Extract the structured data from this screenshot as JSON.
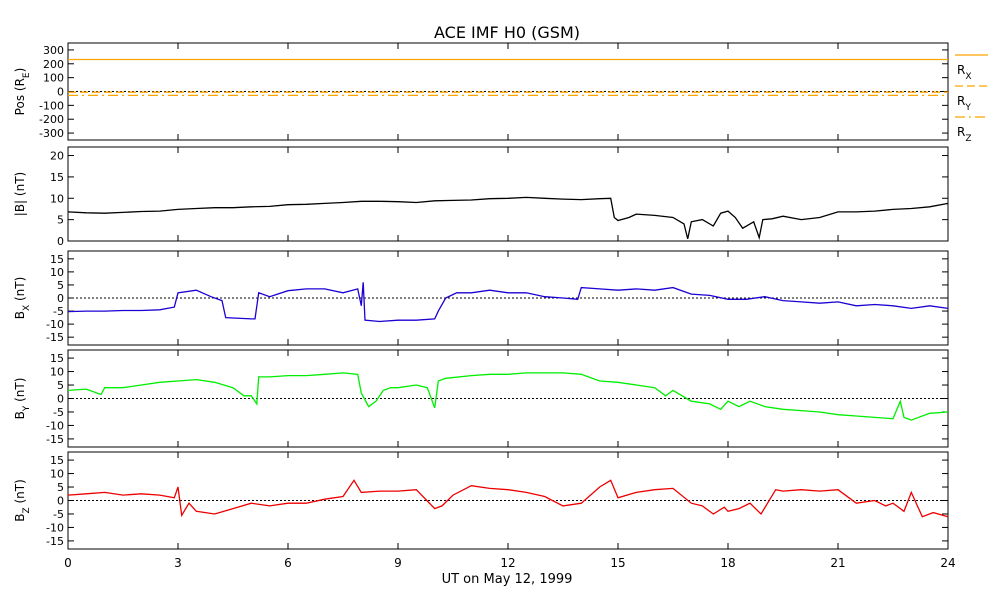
{
  "title": "ACE IMF H0 (GSM)",
  "xlabel": "UT on May 12, 1999",
  "x_ticks": [
    "0",
    "3",
    "6",
    "9",
    "12",
    "15",
    "18",
    "21",
    "24"
  ],
  "chart_data": [
    {
      "type": "line",
      "panel": "pos",
      "ylabel": "Pos (R",
      "ylabel_sub": "E",
      "ylabel_tail": ")",
      "ylim": [
        -350,
        350
      ],
      "y_ticks": [
        300,
        200,
        100,
        0,
        -100,
        -200,
        -300
      ],
      "zero_line": true,
      "series": [
        {
          "name": "R",
          "sub": "X",
          "color": "#ffa500",
          "style": "solid",
          "x": [
            0,
            24
          ],
          "y": [
            231,
            231
          ]
        },
        {
          "name": "R",
          "sub": "Y",
          "color": "#ffa500",
          "style": "dash",
          "x": [
            0,
            24
          ],
          "y": [
            -5,
            -5
          ]
        },
        {
          "name": "R",
          "sub": "Z",
          "color": "#ffa500",
          "style": "dashdot",
          "x": [
            0,
            24
          ],
          "y": [
            -28,
            -28
          ]
        }
      ]
    },
    {
      "type": "line",
      "panel": "bmag",
      "ylabel": "|B| (nT)",
      "ylim": [
        0,
        22
      ],
      "y_ticks": [
        20,
        15,
        10,
        5,
        0
      ],
      "zero_line": false,
      "series": [
        {
          "color": "#000000",
          "x": [
            0,
            0.5,
            1,
            1.5,
            2,
            2.5,
            3,
            3.5,
            4,
            4.5,
            5,
            5.5,
            6,
            6.5,
            7,
            7.5,
            8,
            8.5,
            9,
            9.5,
            10,
            10.5,
            11,
            11.5,
            12,
            12.5,
            13,
            13.5,
            14,
            14.5,
            14.8,
            14.9,
            15,
            15.3,
            15.5,
            16,
            16.5,
            16.8,
            16.9,
            17,
            17.3,
            17.6,
            17.8,
            18,
            18.2,
            18.4,
            18.7,
            18.85,
            18.95,
            19.2,
            19.5,
            20,
            20.5,
            21,
            21.5,
            22,
            22.5,
            23,
            23.5,
            24
          ],
          "y": [
            6.8,
            6.6,
            6.5,
            6.7,
            6.9,
            7.0,
            7.4,
            7.6,
            7.8,
            7.8,
            8.0,
            8.1,
            8.5,
            8.6,
            8.8,
            9.0,
            9.3,
            9.3,
            9.2,
            9.0,
            9.4,
            9.5,
            9.6,
            9.9,
            10.0,
            10.2,
            10.0,
            9.8,
            9.7,
            9.9,
            10.0,
            5.5,
            4.8,
            5.5,
            6.3,
            6.0,
            5.5,
            4.0,
            0.5,
            4.5,
            5.0,
            3.5,
            6.5,
            7.0,
            5.5,
            3.0,
            4.5,
            0.8,
            5.0,
            5.2,
            5.8,
            5.0,
            5.5,
            6.8,
            6.8,
            7.0,
            7.4,
            7.6,
            8.0,
            8.8
          ]
        }
      ]
    },
    {
      "type": "line",
      "panel": "bx",
      "ylabel": "B",
      "ylabel_sub": "X",
      "ylabel_tail": " (nT)",
      "ylim": [
        -18,
        18
      ],
      "y_ticks": [
        15,
        10,
        5,
        0,
        -5,
        -10,
        -15
      ],
      "zero_line": true,
      "series": [
        {
          "color": "#1c00d4",
          "x": [
            0,
            0.5,
            1,
            1.5,
            2,
            2.5,
            2.9,
            3.0,
            3.5,
            3.9,
            4.2,
            4.3,
            5.0,
            5.1,
            5.2,
            5.5,
            6,
            6.5,
            7,
            7.5,
            7.9,
            8.0,
            8.05,
            8.1,
            8.5,
            9,
            9.5,
            10,
            10.1,
            10.3,
            10.6,
            11,
            11.5,
            12,
            12.5,
            13,
            13.5,
            13.9,
            14,
            14.5,
            15,
            15.5,
            16,
            16.5,
            17,
            17.5,
            18,
            18.5,
            19,
            19.5,
            20,
            20.5,
            21,
            21.5,
            22,
            22.5,
            23,
            23.5,
            24
          ],
          "y": [
            -5.2,
            -5.0,
            -5.0,
            -4.8,
            -4.8,
            -4.5,
            -3.5,
            2.0,
            3.0,
            0.5,
            -1.0,
            -7.5,
            -8.0,
            -8.0,
            2.0,
            0.5,
            2.8,
            3.5,
            3.5,
            2.0,
            3.5,
            -3.0,
            6.0,
            -8.5,
            -9.0,
            -8.5,
            -8.5,
            -8.0,
            -5.0,
            0.0,
            2.0,
            2.0,
            3.0,
            2.0,
            2.0,
            0.5,
            0.0,
            -0.5,
            4.0,
            3.5,
            3.0,
            3.5,
            3.0,
            4.0,
            1.5,
            1.0,
            -0.5,
            -0.5,
            0.5,
            -1.0,
            -1.5,
            -2.0,
            -1.5,
            -3.0,
            -2.5,
            -3.0,
            -4.0,
            -3.0,
            -4.0
          ]
        }
      ]
    },
    {
      "type": "line",
      "panel": "by",
      "ylabel": "B",
      "ylabel_sub": "Y",
      "ylabel_tail": " (nT)",
      "ylim": [
        -18,
        18
      ],
      "y_ticks": [
        15,
        10,
        5,
        0,
        -5,
        -10,
        -15
      ],
      "zero_line": true,
      "series": [
        {
          "color": "#00ee00",
          "x": [
            0,
            0.5,
            0.9,
            1,
            1.5,
            2,
            2.5,
            3,
            3.5,
            4,
            4.5,
            4.8,
            5.0,
            5.15,
            5.2,
            5.5,
            6,
            6.5,
            7,
            7.5,
            7.9,
            8.0,
            8.2,
            8.4,
            8.6,
            8.8,
            9,
            9.5,
            9.8,
            10.0,
            10.1,
            10.3,
            11,
            11.5,
            12,
            12.5,
            13,
            13.5,
            14,
            14.5,
            15,
            15.5,
            16,
            16.3,
            16.5,
            17,
            17.5,
            17.8,
            18,
            18.3,
            18.6,
            19,
            19.5,
            20,
            20.5,
            21,
            21.5,
            22,
            22.5,
            22.7,
            22.8,
            23,
            23.5,
            24
          ],
          "y": [
            3.0,
            3.5,
            1.5,
            4.0,
            4.0,
            5.0,
            6.0,
            6.5,
            7.0,
            6.0,
            4.0,
            1.0,
            1.0,
            -2.0,
            8.0,
            8.0,
            8.5,
            8.5,
            9.0,
            9.5,
            9.0,
            2.0,
            -3.0,
            -1.0,
            3.0,
            4.0,
            4.0,
            5.0,
            4.0,
            -3.5,
            6.5,
            7.5,
            8.5,
            9.0,
            9.0,
            9.5,
            9.5,
            9.5,
            9.0,
            6.5,
            6.0,
            5.0,
            4.0,
            1.0,
            3.0,
            -1.0,
            -2.0,
            -4.0,
            -1.0,
            -3.0,
            -1.0,
            -3.0,
            -4.0,
            -4.5,
            -5.0,
            -6.0,
            -6.5,
            -7.0,
            -7.5,
            -1.0,
            -7.0,
            -8.0,
            -5.5,
            -5.0
          ]
        }
      ]
    },
    {
      "type": "line",
      "panel": "bz",
      "ylabel": "B",
      "ylabel_sub": "Z",
      "ylabel_tail": " (nT)",
      "ylim": [
        -18,
        18
      ],
      "y_ticks": [
        15,
        10,
        5,
        0,
        -5,
        -10,
        -15
      ],
      "zero_line": true,
      "series": [
        {
          "color": "#ee0000",
          "x": [
            0,
            0.5,
            1,
            1.5,
            2,
            2.5,
            2.9,
            3.0,
            3.1,
            3.3,
            3.5,
            4,
            4.5,
            5,
            5.5,
            6,
            6.5,
            7,
            7.5,
            7.8,
            8.0,
            8.5,
            9,
            9.5,
            10,
            10.2,
            10.5,
            11,
            11.5,
            12,
            12.5,
            13,
            13.5,
            14,
            14.5,
            14.8,
            15.0,
            15.5,
            16,
            16.5,
            17,
            17.3,
            17.6,
            17.9,
            18,
            18.3,
            18.6,
            18.9,
            19.3,
            19.5,
            20,
            20.5,
            21,
            21.5,
            22,
            22.3,
            22.5,
            22.8,
            23,
            23.3,
            23.6,
            24
          ],
          "y": [
            2.0,
            2.5,
            3.0,
            2.0,
            2.5,
            2.0,
            1.0,
            5.0,
            -5.5,
            -1.0,
            -4.0,
            -5.0,
            -3.0,
            -1.0,
            -2.0,
            -1.0,
            -1.0,
            0.5,
            1.5,
            7.5,
            3.0,
            3.5,
            3.5,
            4.0,
            -3.0,
            -2.0,
            2.0,
            5.5,
            4.5,
            4.0,
            3.0,
            1.5,
            -2.0,
            -1.0,
            5.0,
            7.5,
            1.0,
            3.0,
            4.0,
            4.5,
            -1.0,
            -2.0,
            -5.0,
            -2.5,
            -4.0,
            -3.0,
            -1.0,
            -5.0,
            4.0,
            3.5,
            4.0,
            3.5,
            4.0,
            -1.0,
            0.0,
            -2.0,
            -1.0,
            -4.0,
            3.0,
            -6.0,
            -4.5,
            -6.0
          ]
        }
      ]
    }
  ]
}
